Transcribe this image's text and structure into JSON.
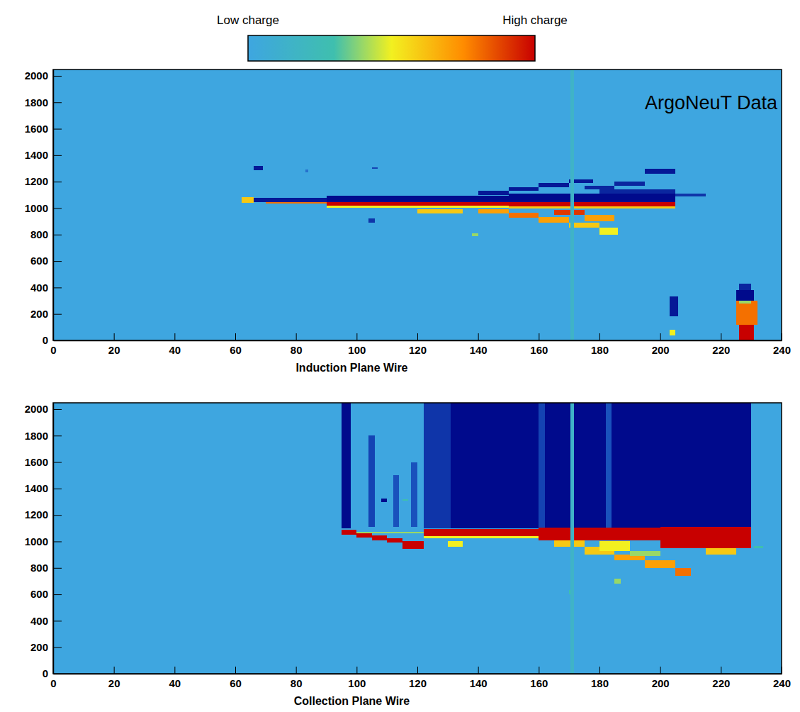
{
  "chart_data": [
    {
      "type": "heatmap",
      "xlabel": "Induction Plane Wire",
      "annotation": "ArgoNeuT Data",
      "xlim": [
        0,
        240
      ],
      "xticks": [
        0,
        20,
        40,
        60,
        80,
        100,
        120,
        140,
        160,
        180,
        200,
        220,
        240
      ],
      "ylim": [
        0,
        2048
      ],
      "yticks": [
        0,
        200,
        400,
        600,
        800,
        1000,
        1200,
        1400,
        1600,
        1800,
        2000
      ],
      "colorbar": {
        "range": [
          0,
          1
        ],
        "ticks": [
          {
            "value": 0,
            "label": "Low charge"
          },
          {
            "value": 1,
            "label": "High charge"
          }
        ]
      },
      "background": 0,
      "cells": [
        [
          62,
          66,
          1040,
          1085,
          0.6
        ],
        [
          66,
          69,
          1285,
          1320,
          -0.9
        ],
        [
          83,
          84,
          1270,
          1290,
          -0.3
        ],
        [
          66,
          90,
          1045,
          1075,
          -0.9
        ],
        [
          70,
          90,
          1035,
          1048,
          0.8
        ],
        [
          90,
          150,
          1045,
          1095,
          -1
        ],
        [
          90,
          150,
          1020,
          1045,
          1
        ],
        [
          90,
          150,
          1005,
          1020,
          0.5
        ],
        [
          150,
          205,
          1045,
          1110,
          -1
        ],
        [
          150,
          205,
          1015,
          1045,
          1
        ],
        [
          150,
          205,
          995,
          1015,
          0.6
        ],
        [
          180,
          205,
          1110,
          1140,
          -0.8
        ],
        [
          205,
          215,
          1090,
          1110,
          -0.7
        ],
        [
          140,
          150,
          1100,
          1130,
          -0.9
        ],
        [
          150,
          160,
          1130,
          1160,
          -0.9
        ],
        [
          160,
          170,
          1160,
          1190,
          -0.9
        ],
        [
          170,
          178,
          1190,
          1215,
          -0.9
        ],
        [
          175,
          185,
          1140,
          1170,
          -0.8
        ],
        [
          185,
          195,
          1170,
          1200,
          -0.8
        ],
        [
          195,
          205,
          1260,
          1300,
          -0.9
        ],
        [
          105,
          107,
          1300,
          1310,
          -0.6
        ],
        [
          140,
          150,
          960,
          990,
          0.7
        ],
        [
          150,
          160,
          930,
          965,
          0.8
        ],
        [
          160,
          170,
          890,
          935,
          0.7
        ],
        [
          170,
          180,
          850,
          890,
          0.6
        ],
        [
          180,
          186,
          800,
          850,
          0.5
        ],
        [
          165,
          175,
          950,
          985,
          0.9
        ],
        [
          175,
          185,
          900,
          950,
          0.7
        ],
        [
          120,
          135,
          960,
          990,
          0.6
        ],
        [
          104,
          106,
          890,
          920,
          -0.7
        ],
        [
          138,
          140,
          790,
          810,
          0.4
        ],
        [
          226,
          231,
          0,
          120,
          1
        ],
        [
          225,
          232,
          120,
          300,
          0.8
        ],
        [
          226,
          230,
          280,
          330,
          0.4
        ],
        [
          225,
          231,
          300,
          380,
          -1
        ],
        [
          226,
          230,
          380,
          430,
          -0.8
        ],
        [
          203,
          206,
          180,
          330,
          -0.9
        ],
        [
          203,
          205,
          40,
          80,
          0.5
        ],
        [
          170.5,
          171.5,
          0,
          2048,
          0.15
        ]
      ]
    },
    {
      "type": "heatmap",
      "xlabel": "Collection Plane Wire",
      "xlim": [
        0,
        240
      ],
      "xticks": [
        0,
        20,
        40,
        60,
        80,
        100,
        120,
        140,
        160,
        180,
        200,
        220,
        240
      ],
      "ylim": [
        0,
        2048
      ],
      "yticks": [
        0,
        200,
        400,
        600,
        800,
        1000,
        1200,
        1400,
        1600,
        1800,
        2000
      ],
      "background": 0,
      "cells": [
        [
          95,
          98,
          1100,
          2048,
          -1
        ],
        [
          104,
          106,
          1110,
          1800,
          -0.6
        ],
        [
          112,
          114,
          1110,
          1500,
          -0.5
        ],
        [
          118,
          120,
          1110,
          1600,
          -0.5
        ],
        [
          122,
          131,
          1100,
          2048,
          -0.7
        ],
        [
          131,
          230,
          1100,
          2048,
          -1
        ],
        [
          160,
          162,
          1100,
          2048,
          -0.6
        ],
        [
          182,
          184,
          1100,
          2048,
          -0.5
        ],
        [
          95,
          100,
          1050,
          1090,
          1
        ],
        [
          100,
          105,
          1030,
          1065,
          1
        ],
        [
          105,
          110,
          1010,
          1045,
          1
        ],
        [
          110,
          115,
          990,
          1025,
          1
        ],
        [
          115,
          122,
          945,
          1005,
          1
        ],
        [
          100,
          122,
          1060,
          1072,
          0.4
        ],
        [
          122,
          160,
          1040,
          1095,
          1
        ],
        [
          160,
          200,
          1010,
          1105,
          1
        ],
        [
          200,
          230,
          950,
          1110,
          1
        ],
        [
          122,
          160,
          1025,
          1040,
          0.5
        ],
        [
          165,
          175,
          960,
          1010,
          0.6
        ],
        [
          175,
          185,
          900,
          960,
          0.6
        ],
        [
          185,
          195,
          860,
          900,
          0.7
        ],
        [
          195,
          205,
          800,
          860,
          0.7
        ],
        [
          205,
          210,
          740,
          800,
          0.8
        ],
        [
          180,
          190,
          930,
          1000,
          0.5
        ],
        [
          190,
          200,
          890,
          930,
          0.4
        ],
        [
          215,
          225,
          900,
          950,
          0.6
        ],
        [
          130,
          135,
          960,
          1000,
          0.5
        ],
        [
          108,
          110,
          1300,
          1325,
          -1
        ],
        [
          115,
          117,
          1310,
          1320,
          0.3
        ],
        [
          185,
          187,
          680,
          720,
          0.4
        ],
        [
          170,
          171,
          600,
          630,
          0.3
        ],
        [
          231,
          234,
          950,
          965,
          0.3
        ],
        [
          170.5,
          171.5,
          0,
          2048,
          0.15
        ]
      ]
    }
  ]
}
